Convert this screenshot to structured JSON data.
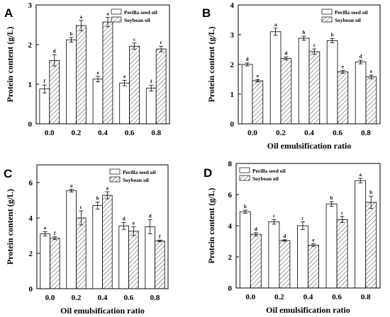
{
  "figure": {
    "legend": {
      "series_a": "Perilla seed oil",
      "series_b": "Soybean oil"
    }
  },
  "chart_data": [
    {
      "panel": "A",
      "type": "bar",
      "xlabel": "",
      "ylabel": "Protein content  (g/L)",
      "categories": [
        "0.0",
        "0.2",
        "0.4",
        "0.6",
        "0.8"
      ],
      "ylim": [
        0,
        3
      ],
      "yticks": [
        "0",
        "1",
        "2",
        "3"
      ],
      "legend_position": "top-right",
      "series": [
        {
          "name": "Perilla seed oil",
          "pattern": "white",
          "values": [
            0.88,
            2.12,
            1.13,
            1.03,
            0.9
          ],
          "errors": [
            0.1,
            0.06,
            0.07,
            0.07,
            0.07
          ],
          "labels": [
            "f",
            "b",
            "e",
            "e",
            "f"
          ]
        },
        {
          "name": "Soybean oil",
          "pattern": "hatched",
          "values": [
            1.6,
            2.48,
            2.57,
            1.96,
            1.89
          ],
          "errors": [
            0.14,
            0.13,
            0.12,
            0.08,
            0.07
          ],
          "labels": [
            "d",
            "a",
            "a",
            "c",
            "c"
          ]
        }
      ]
    },
    {
      "panel": "B",
      "type": "bar",
      "xlabel": "Oil emulsification ratio",
      "ylabel": "Protein content (g/L)",
      "categories": [
        "0.0",
        "0.2",
        "0.4",
        "0.6",
        "0.8"
      ],
      "ylim": [
        0,
        4
      ],
      "yticks": [
        "0",
        "1",
        "2",
        "3",
        "4"
      ],
      "legend_position": "top-right",
      "series": [
        {
          "name": "Perilla seed oil",
          "pattern": "white",
          "values": [
            2.0,
            3.1,
            2.88,
            2.8,
            2.08
          ],
          "errors": [
            0.05,
            0.12,
            0.07,
            0.07,
            0.06
          ],
          "labels": [
            "d",
            "a",
            "b",
            "b",
            "d"
          ]
        },
        {
          "name": "Soybean oil",
          "pattern": "hatched",
          "values": [
            1.45,
            2.2,
            2.43,
            1.75,
            1.58
          ],
          "errors": [
            0.04,
            0.05,
            0.09,
            0.05,
            0.06
          ],
          "labels": [
            "e",
            "d",
            "c",
            "e",
            "e"
          ]
        }
      ]
    },
    {
      "panel": "C",
      "type": "bar",
      "xlabel": "Oil emulsification ratio",
      "ylabel": "Protein content (g/L)",
      "categories": [
        "0.0",
        "0.2",
        "0.4",
        "0.6",
        "0.8"
      ],
      "ylim": [
        0,
        7
      ],
      "yticks": [
        "0",
        "2",
        "4",
        "6"
      ],
      "legend_position": "top-right",
      "series": [
        {
          "name": "Perilla seed oil",
          "pattern": "white",
          "values": [
            3.1,
            5.55,
            4.7,
            3.55,
            3.5
          ],
          "errors": [
            0.12,
            0.08,
            0.2,
            0.2,
            0.4
          ],
          "labels": [
            "e",
            "a",
            "b",
            "d",
            "d"
          ]
        },
        {
          "name": "Soybean oil",
          "pattern": "hatched",
          "values": [
            2.85,
            4.0,
            5.28,
            3.25,
            2.7
          ],
          "errors": [
            0.08,
            0.4,
            0.2,
            0.25,
            0.05
          ],
          "labels": [
            "f",
            "c",
            "a",
            "e",
            "f"
          ]
        }
      ]
    },
    {
      "panel": "D",
      "type": "bar",
      "xlabel": "Oil emulsification ratio",
      "ylabel": "Protein content (g/L)",
      "categories": [
        "0.0",
        "0.2",
        "0.4",
        "0.6",
        "0.8"
      ],
      "ylim": [
        0,
        8
      ],
      "yticks": [
        "0",
        "2",
        "4",
        "6",
        "8"
      ],
      "legend_position": "top-left",
      "series": [
        {
          "name": "Perilla seed oil",
          "pattern": "white",
          "values": [
            4.9,
            4.25,
            4.0,
            5.4,
            6.9
          ],
          "errors": [
            0.1,
            0.15,
            0.25,
            0.15,
            0.15
          ],
          "labels": [
            "b",
            "c",
            "c",
            "b",
            "a"
          ]
        },
        {
          "name": "Soybean oil",
          "pattern": "hatched",
          "values": [
            3.45,
            3.05,
            2.75,
            4.4,
            5.5
          ],
          "errors": [
            0.1,
            0.05,
            0.08,
            0.2,
            0.4
          ],
          "labels": [
            "d",
            "d",
            "e",
            "c",
            "b"
          ]
        }
      ]
    }
  ]
}
